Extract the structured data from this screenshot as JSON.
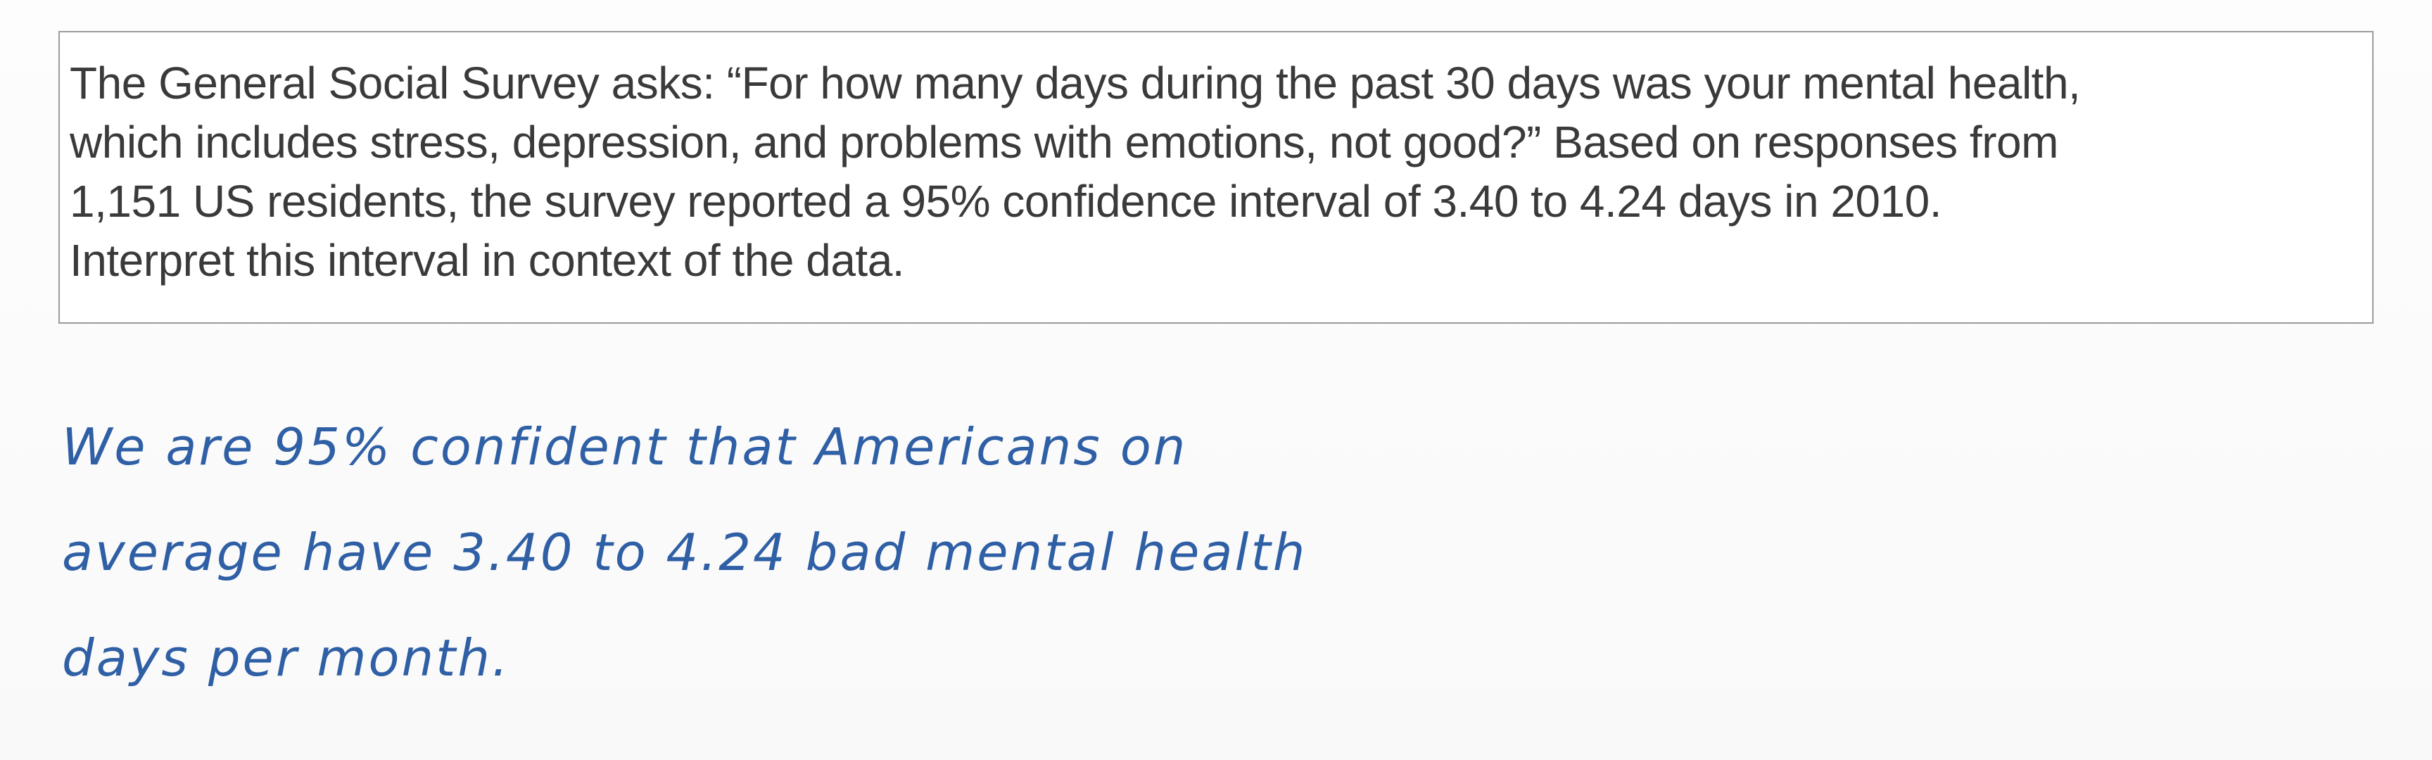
{
  "question": {
    "lines": [
      "The General Social Survey asks: “For how many days during the past 30 days was your mental health,",
      "which includes stress, depression, and problems with emotions, not good?” Based on responses from",
      "1,151 US residents, the survey reported a 95% confidence interval of 3.40 to 4.24 days in 2010.",
      "Interpret this interval in context of the data."
    ]
  },
  "answer": {
    "lines": [
      "We are 95% confident that Americans on",
      "average have 3.40 to 4.24 bad mental  health",
      "days per month."
    ]
  },
  "colors": {
    "question_text": "#3a3a3a",
    "answer_ink": "#2f5fa5",
    "box_border": "#9a9a9a",
    "background": "#fbfbfb"
  }
}
